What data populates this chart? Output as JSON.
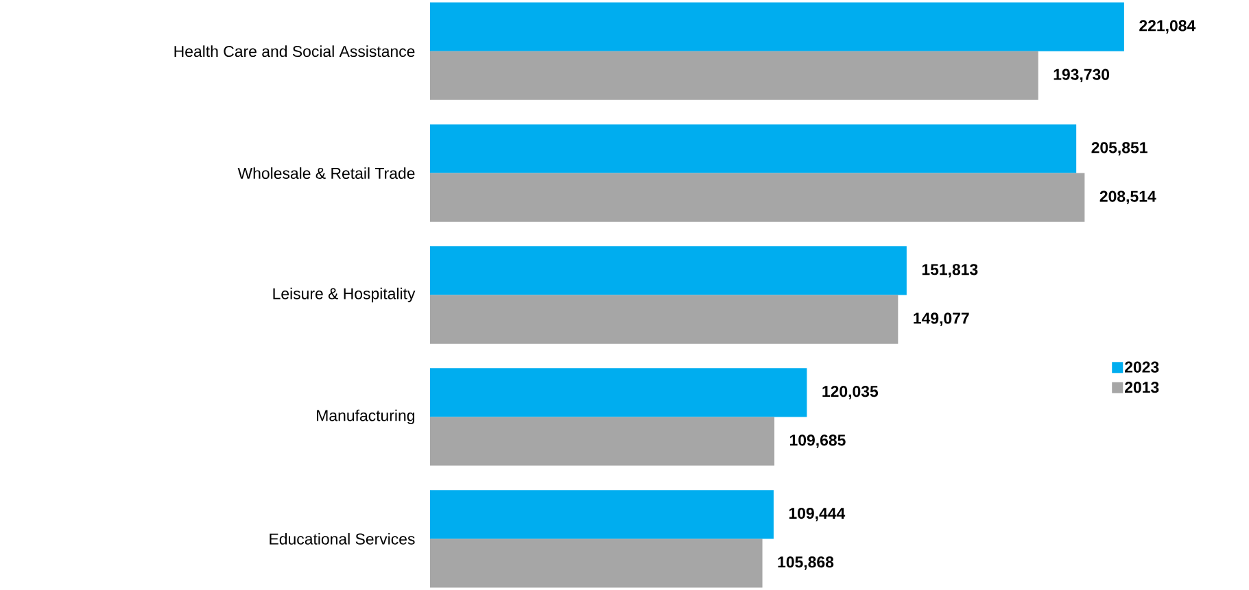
{
  "chart_data": {
    "type": "bar",
    "orientation": "horizontal",
    "categories": [
      "Health Care and Social Assistance",
      "Wholesale & Retail Trade",
      "Leisure & Hospitality",
      "Manufacturing",
      "Educational Services"
    ],
    "series": [
      {
        "name": "2023",
        "color": "#00adef",
        "values": [
          221084,
          205851,
          151813,
          120035,
          109444
        ],
        "value_labels": [
          "221,084",
          "205,851",
          "151,813",
          "120,035",
          "109,444"
        ]
      },
      {
        "name": "2013",
        "color": "#a6a6a6",
        "values": [
          193730,
          208514,
          149077,
          109685,
          105868
        ],
        "value_labels": [
          "193,730",
          "208,514",
          "149,077",
          "109,685",
          "105,868"
        ]
      }
    ],
    "legend": "right"
  }
}
